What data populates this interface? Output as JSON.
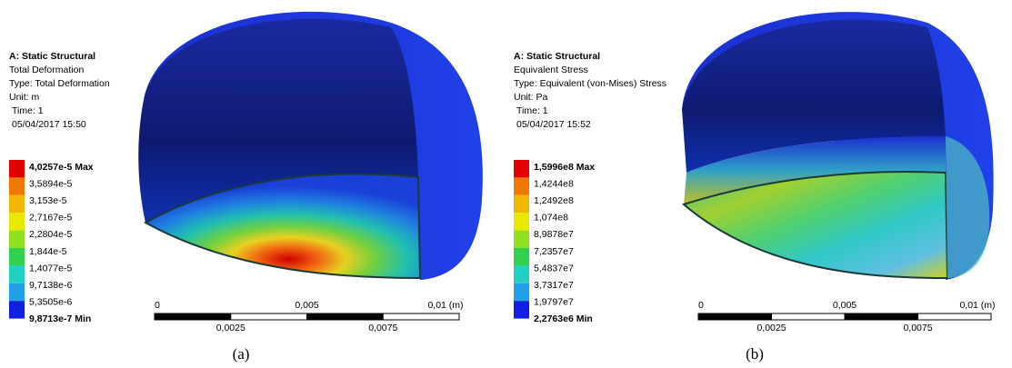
{
  "panels": [
    {
      "header": [
        "A: Static Structural",
        "Total Deformation",
        "Type: Total Deformation",
        "Unit: m",
        "Time: 1",
        "05/04/2017 15:50"
      ],
      "legend": [
        "4,0257e-5 Max",
        "3,5894e-5",
        "3,153e-5",
        "2,7167e-5",
        "2,2804e-5",
        "1,844e-5",
        "1,4077e-5",
        "9,7138e-6",
        "5,3505e-6",
        "9,8713e-7 Min"
      ],
      "scale_top": [
        "0",
        "0,005",
        "0,01 (m)"
      ],
      "scale_bottom": [
        "0,0025",
        "0,0075"
      ],
      "caption": "(a)"
    },
    {
      "header": [
        "A: Static Structural",
        "Equivalent Stress",
        "Type: Equivalent (von-Mises) Stress",
        "Unit: Pa",
        "Time: 1",
        "05/04/2017 15:52"
      ],
      "legend": [
        "1,5996e8 Max",
        "1,4244e8",
        "1,2492e8",
        "1,074e8",
        "8,9878e7",
        "7,2357e7",
        "5,4837e7",
        "3,7317e7",
        "1,9797e7",
        "2,2763e6 Min"
      ],
      "scale_top": [
        "0",
        "0,005",
        "0,01 (m)"
      ],
      "scale_bottom": [
        "0,0025",
        "0,0075"
      ],
      "caption": "(b)"
    }
  ]
}
